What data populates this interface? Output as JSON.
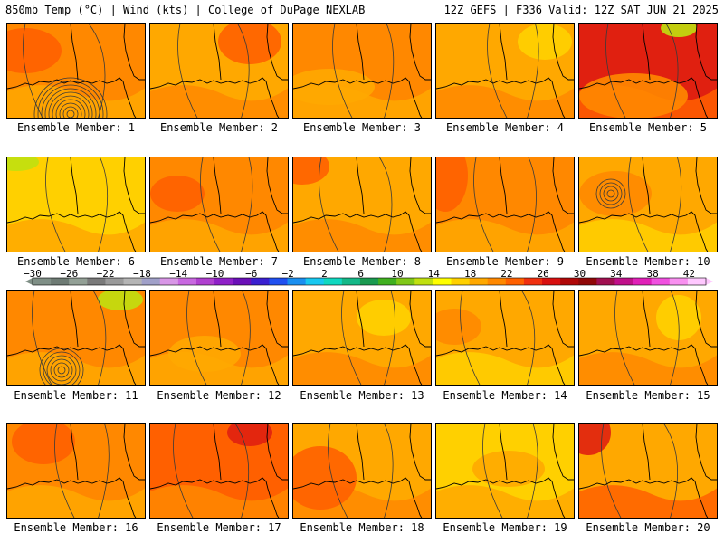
{
  "header": {
    "left": "850mb Temp (°C) | Wind (kts) | College of DuPage NEXLAB",
    "right": "12Z GEFS | F336 Valid: 12Z SAT JUN 21 2025"
  },
  "colorbar": {
    "tick_labels": [
      "−30",
      "−26",
      "−22",
      "−18",
      "−14",
      "−10",
      "−6",
      "−2",
      "2",
      "6",
      "10",
      "14",
      "18",
      "22",
      "26",
      "30",
      "34",
      "38",
      "42"
    ],
    "colors": [
      "#7f8f86",
      "#6e7b74",
      "#93a096",
      "#7a7a7a",
      "#9a9a9a",
      "#b5b5b5",
      "#a0a0c8",
      "#d896e6",
      "#c868e0",
      "#b040d0",
      "#8f20c8",
      "#6a10b8",
      "#3a20d0",
      "#2050f0",
      "#1a8ff0",
      "#18c8f0",
      "#10d8c0",
      "#14b888",
      "#1a9a50",
      "#40b020",
      "#80c818",
      "#c0e010",
      "#ffff00",
      "#ffd000",
      "#ffa800",
      "#ff8800",
      "#ff6000",
      "#f03010",
      "#d81010",
      "#b00808",
      "#900808",
      "#a01050",
      "#c0108a",
      "#e020b8",
      "#f050e0",
      "#f890f0",
      "#ffc8ff"
    ]
  },
  "panels": [
    {
      "caption": "Ensemble Member: 1"
    },
    {
      "caption": "Ensemble Member: 2"
    },
    {
      "caption": "Ensemble Member: 3"
    },
    {
      "caption": "Ensemble Member: 4"
    },
    {
      "caption": "Ensemble Member: 5"
    },
    {
      "caption": "Ensemble Member: 6"
    },
    {
      "caption": "Ensemble Member: 7"
    },
    {
      "caption": "Ensemble Member: 8"
    },
    {
      "caption": "Ensemble Member: 9"
    },
    {
      "caption": "Ensemble Member: 10"
    },
    {
      "caption": "Ensemble Member: 11"
    },
    {
      "caption": "Ensemble Member: 12"
    },
    {
      "caption": "Ensemble Member: 13"
    },
    {
      "caption": "Ensemble Member: 14"
    },
    {
      "caption": "Ensemble Member: 15"
    },
    {
      "caption": "Ensemble Member: 16"
    },
    {
      "caption": "Ensemble Member: 17"
    },
    {
      "caption": "Ensemble Member: 18"
    },
    {
      "caption": "Ensemble Member: 19"
    },
    {
      "caption": "Ensemble Member: 20"
    }
  ],
  "map_colors": {
    "warm": "#ffa800",
    "warmer": "#ff8800",
    "hot": "#ff6000",
    "mild": "#ffd000",
    "vhot": "#e02010",
    "cool": "#c0e010",
    "contour": "#3a3a3a",
    "coast": "#000000"
  }
}
